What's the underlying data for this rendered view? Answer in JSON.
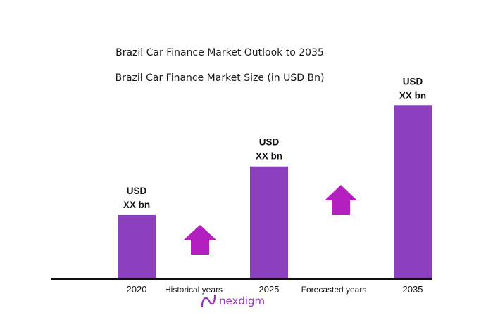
{
  "chart_data": {
    "type": "bar",
    "title": "Brazil Car Finance Market Outlook to 2035",
    "subtitle": "Brazil Car Finance Market Size (in USD Bn)",
    "categories": [
      "2020",
      "2025",
      "2035"
    ],
    "value_labels": [
      {
        "line1": "USD",
        "line2": "XX bn"
      },
      {
        "line1": "USD",
        "line2": "XX bn"
      },
      {
        "line1": "USD",
        "line2": "XX bn"
      }
    ],
    "values": [
      1.0,
      1.77,
      2.73
    ],
    "period_labels": [
      "Historical years",
      "Forecasted years"
    ],
    "bar_color": "#8b3fbf",
    "arrow_color": "#b31fbf",
    "grid": false,
    "legend": "none"
  },
  "brand": {
    "name": "nexdigm",
    "color": "#9a2fc0"
  }
}
